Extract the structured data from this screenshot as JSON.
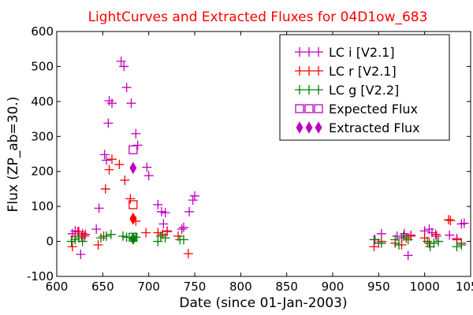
{
  "chart_data": {
    "type": "scatter",
    "title": "LightCurves and Extracted Fluxes for 04D1ow_683",
    "title_color": "#ff0000",
    "xlabel": "Date (since 01-Jan-2003)",
    "ylabel": "Flux (ZP_ab=30.)",
    "xlim": [
      600,
      1050
    ],
    "ylim": [
      -100,
      600
    ],
    "x_ticks": [
      600,
      650,
      700,
      750,
      800,
      850,
      900,
      950,
      1000,
      1050
    ],
    "y_ticks": [
      -100,
      0,
      100,
      200,
      300,
      400,
      500,
      600
    ],
    "x_tick_labels": [
      "600",
      "650",
      "700",
      "750",
      "800",
      "850",
      "900",
      "950",
      "1000",
      "1050"
    ],
    "y_tick_labels": [
      "-100",
      "0",
      "100",
      "200",
      "300",
      "400",
      "500",
      "600"
    ],
    "grid": false,
    "legend_position": "top-right",
    "series": [
      {
        "name": "LC i [V2.1]",
        "marker": "plus",
        "color": "#bf00bf",
        "points": [
          [
            617,
            22
          ],
          [
            620,
            30
          ],
          [
            623,
            28
          ],
          [
            626,
            -37
          ],
          [
            628,
            22
          ],
          [
            630,
            15
          ],
          [
            643,
            35
          ],
          [
            646,
            95
          ],
          [
            652,
            248
          ],
          [
            654,
            232
          ],
          [
            656,
            338
          ],
          [
            657,
            402
          ],
          [
            660,
            395
          ],
          [
            670,
            515
          ],
          [
            673,
            500
          ],
          [
            676,
            440
          ],
          [
            681,
            395
          ],
          [
            686,
            308
          ],
          [
            688,
            275
          ],
          [
            698,
            212
          ],
          [
            700,
            188
          ],
          [
            710,
            105
          ],
          [
            714,
            85
          ],
          [
            716,
            50
          ],
          [
            718,
            82
          ],
          [
            720,
            28
          ],
          [
            736,
            35
          ],
          [
            738,
            40
          ],
          [
            744,
            85
          ],
          [
            748,
            118
          ],
          [
            750,
            130
          ],
          [
            945,
            5
          ],
          [
            950,
            -5
          ],
          [
            953,
            22
          ],
          [
            970,
            15
          ],
          [
            975,
            10
          ],
          [
            978,
            22
          ],
          [
            982,
            -40
          ],
          [
            985,
            18
          ],
          [
            1000,
            30
          ],
          [
            1005,
            35
          ],
          [
            1008,
            25
          ],
          [
            1013,
            15
          ],
          [
            1027,
            18
          ],
          [
            1035,
            8
          ],
          [
            1040,
            50
          ],
          [
            1043,
            52
          ]
        ]
      },
      {
        "name": "LC r [V2.1]",
        "marker": "plus",
        "color": "#ff0000",
        "points": [
          [
            617,
            -15
          ],
          [
            620,
            15
          ],
          [
            624,
            28
          ],
          [
            627,
            15
          ],
          [
            631,
            20
          ],
          [
            645,
            -10
          ],
          [
            651,
            15
          ],
          [
            653,
            150
          ],
          [
            657,
            205
          ],
          [
            660,
            235
          ],
          [
            668,
            220
          ],
          [
            674,
            175
          ],
          [
            680,
            122
          ],
          [
            686,
            58
          ],
          [
            697,
            25
          ],
          [
            710,
            25
          ],
          [
            715,
            20
          ],
          [
            720,
            30
          ],
          [
            732,
            15
          ],
          [
            743,
            -35
          ],
          [
            945,
            -15
          ],
          [
            953,
            0
          ],
          [
            968,
            -5
          ],
          [
            975,
            -10
          ],
          [
            980,
            10
          ],
          [
            985,
            15
          ],
          [
            1000,
            10
          ],
          [
            1005,
            -5
          ],
          [
            1012,
            20
          ],
          [
            1026,
            62
          ],
          [
            1028,
            60
          ],
          [
            1035,
            5
          ],
          [
            1040,
            -5
          ]
        ]
      },
      {
        "name": "LC g [V2.2]",
        "marker": "plus",
        "color": "#008000",
        "points": [
          [
            616,
            0
          ],
          [
            620,
            5
          ],
          [
            624,
            10
          ],
          [
            628,
            0
          ],
          [
            648,
            10
          ],
          [
            654,
            15
          ],
          [
            659,
            20
          ],
          [
            672,
            15
          ],
          [
            676,
            12
          ],
          [
            686,
            12
          ],
          [
            710,
            0
          ],
          [
            713,
            15
          ],
          [
            718,
            10
          ],
          [
            734,
            5
          ],
          [
            738,
            5
          ],
          [
            946,
            5
          ],
          [
            953,
            -5
          ],
          [
            968,
            5
          ],
          [
            972,
            -10
          ],
          [
            977,
            15
          ],
          [
            982,
            5
          ],
          [
            1003,
            0
          ],
          [
            1006,
            -15
          ],
          [
            1010,
            -5
          ],
          [
            1015,
            0
          ],
          [
            1035,
            -15
          ],
          [
            1040,
            -10
          ]
        ]
      },
      {
        "name": "Expected Flux",
        "marker": "open-square",
        "color": "#bf00bf",
        "points": [
          [
            683,
            262
          ]
        ]
      },
      {
        "name": "Expected Flux",
        "marker": "open-square",
        "color": "#ff0000",
        "points": [
          [
            683,
            105
          ]
        ]
      },
      {
        "name": "Expected Flux",
        "marker": "open-square",
        "color": "#008000",
        "points": [
          [
            683,
            12
          ]
        ]
      },
      {
        "name": "Extracted Flux",
        "marker": "diamond",
        "color": "#bf00bf",
        "points": [
          [
            683,
            210
          ]
        ]
      },
      {
        "name": "Extracted Flux",
        "marker": "diamond",
        "color": "#ff0000",
        "points": [
          [
            683,
            65
          ]
        ]
      },
      {
        "name": "Extracted Flux",
        "marker": "diamond",
        "color": "#008000",
        "points": [
          [
            683,
            8
          ]
        ]
      }
    ],
    "legend": [
      {
        "label": "LC i [V2.1]",
        "marker": "plus",
        "color": "#bf00bf"
      },
      {
        "label": "LC r [V2.1]",
        "marker": "plus",
        "color": "#ff0000"
      },
      {
        "label": "LC g [V2.2]",
        "marker": "plus",
        "color": "#008000"
      },
      {
        "label": "Expected Flux",
        "marker": "open-square",
        "color": "#bf00bf"
      },
      {
        "label": "Extracted Flux",
        "marker": "diamond",
        "color": "#bf00bf"
      }
    ]
  }
}
